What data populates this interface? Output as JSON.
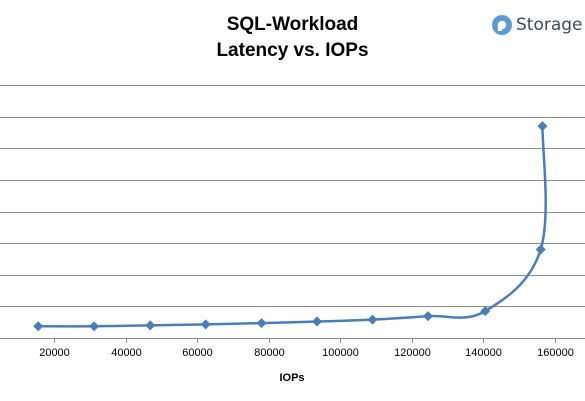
{
  "brand": {
    "name": "Storage"
  },
  "chart_data": {
    "type": "line",
    "title_line1": "SQL-Workload",
    "title_line2": "Latency vs. IOPs",
    "xlabel": "IOPs",
    "ylabel": "",
    "x_ticks": [
      20000,
      40000,
      60000,
      80000,
      100000,
      120000,
      140000,
      160000
    ],
    "xlim": [
      10000,
      168000
    ],
    "ylim": [
      0,
      8
    ],
    "y_gridlines": [
      1,
      2,
      3,
      4,
      5,
      6,
      7,
      8
    ],
    "grid": true,
    "series": [
      {
        "color": "#4a7ebb",
        "points": [
          {
            "x": 15600,
            "y": 0.37
          },
          {
            "x": 31200,
            "y": 0.37
          },
          {
            "x": 46900,
            "y": 0.4
          },
          {
            "x": 62400,
            "y": 0.43
          },
          {
            "x": 78000,
            "y": 0.47
          },
          {
            "x": 93500,
            "y": 0.52
          },
          {
            "x": 109000,
            "y": 0.58
          },
          {
            "x": 124500,
            "y": 0.69
          },
          {
            "x": 140500,
            "y": 0.85
          },
          {
            "x": 156000,
            "y": 2.8
          },
          {
            "x": 156500,
            "y": 6.7
          }
        ]
      }
    ]
  }
}
